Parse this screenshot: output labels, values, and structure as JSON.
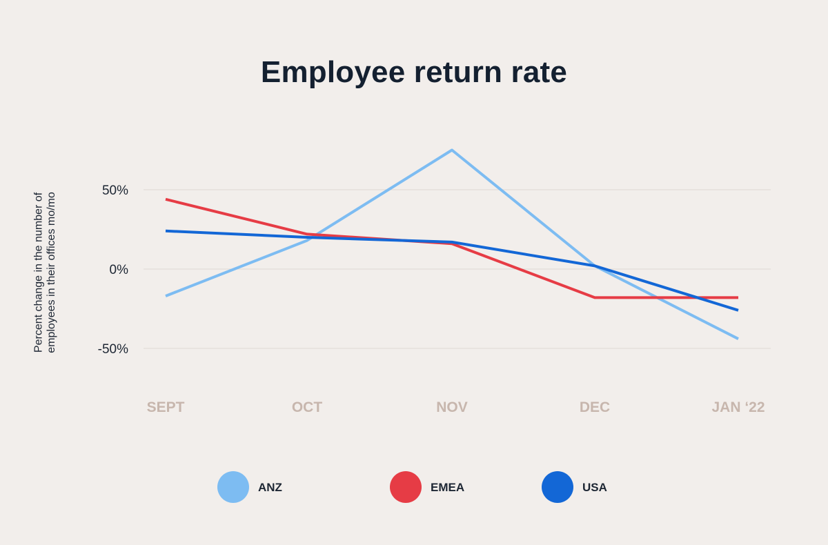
{
  "chart_data": {
    "type": "line",
    "title": "Employee return rate",
    "ylabel": "Percent change in the number of employees in their offices mo/mo",
    "xlabel": "",
    "categories": [
      "SEPT",
      "OCT",
      "NOV",
      "DEC",
      "JAN ‘22"
    ],
    "yticks": [
      {
        "value": 50,
        "label": "50%"
      },
      {
        "value": 0,
        "label": "0%"
      },
      {
        "value": -50,
        "label": "-50%"
      }
    ],
    "ylim": [
      -75,
      80
    ],
    "grid": true,
    "legend_position": "bottom",
    "series": [
      {
        "name": "ANZ",
        "color": "#7dbcf2",
        "values": [
          -17,
          18,
          75,
          2,
          -44
        ]
      },
      {
        "name": "EMEA",
        "color": "#e63c45",
        "values": [
          44,
          22,
          16,
          -18,
          -18
        ]
      },
      {
        "name": "USA",
        "color": "#1367d6",
        "values": [
          24,
          20,
          17,
          2,
          -26
        ]
      }
    ]
  }
}
